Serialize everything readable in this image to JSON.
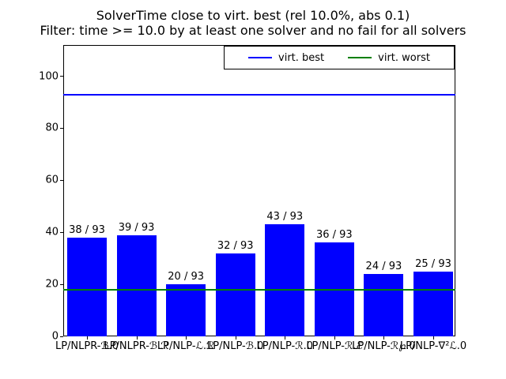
{
  "title": {
    "line1": "SolverTime close to virt. best (rel 10.0%, abs 0.1)",
    "line2": "Filter: time >= 10.0 by at least one solver and no fail for all solvers"
  },
  "legend": [
    {
      "label": "virt. best",
      "color": "#0000ff"
    },
    {
      "label": "virt. worst",
      "color": "#008000"
    }
  ],
  "chart_data": {
    "type": "bar",
    "title": "SolverTime close to virt. best (rel 10.0%, abs 0.1)",
    "subtitle": "Filter: time >= 10.0 by at least one solver and no fail for all solvers",
    "xlabel": "",
    "ylabel": "",
    "categories": [
      "LP/NLPR-ℬ.0",
      "LP/NLPR-ℬ.ℛ",
      "LP/NLP-ℒ.ℛ",
      "LP/NLP-ℬ.0",
      "LP/NLP-ℛ.0",
      "LP/NLP-ℛ.ℰ",
      "LP/NLP-ℛ℘.0",
      "LP/NLP-∇²ℒ.0"
    ],
    "values": [
      38,
      39,
      20,
      32,
      43,
      36,
      24,
      25
    ],
    "bar_labels": [
      "38 / 93",
      "39 / 93",
      "20 / 93",
      "32 / 93",
      "43 / 93",
      "36 / 93",
      "24 / 93",
      "25 / 93"
    ],
    "instances_total": 93,
    "bar_color": "#0000ff",
    "hlines": [
      {
        "name": "virt. best",
        "value": 93,
        "color": "#0000ff"
      },
      {
        "name": "virt. worst",
        "value": 18,
        "color": "#008000"
      }
    ],
    "yticks": [
      0,
      20,
      40,
      60,
      80,
      100
    ],
    "ylim": [
      0,
      112
    ],
    "grid": false,
    "legend_position": "upper center"
  }
}
